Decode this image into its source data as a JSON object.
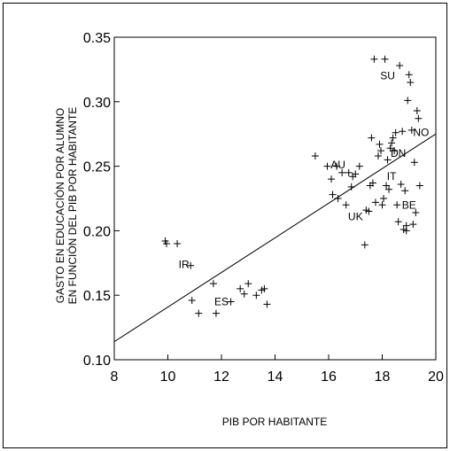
{
  "chart_data": {
    "type": "scatter",
    "title": "",
    "xlabel": "PIB POR HABITANTE",
    "ylabel": [
      "GASTO EN EDUCACIÓN POR ALUMNO",
      "EN FUNCIÓN DEL PIB POR HABITANTE"
    ],
    "xlim": [
      8,
      20
    ],
    "ylim": [
      0.1,
      0.35
    ],
    "xticks": [
      "8",
      "10",
      "12",
      "14",
      "16",
      "18",
      "20"
    ],
    "yticks": [
      "0.10",
      "0.15",
      "0.20",
      "0.25",
      "0.30",
      "0.35"
    ],
    "grid": false,
    "legend": "none",
    "marker": "+",
    "points": [
      {
        "x": 9.9,
        "y": 0.192
      },
      {
        "x": 9.95,
        "y": 0.19
      },
      {
        "x": 10.35,
        "y": 0.19
      },
      {
        "x": 10.85,
        "y": 0.173
      },
      {
        "x": 10.9,
        "y": 0.146
      },
      {
        "x": 11.15,
        "y": 0.136
      },
      {
        "x": 11.7,
        "y": 0.159
      },
      {
        "x": 11.8,
        "y": 0.136
      },
      {
        "x": 12.35,
        "y": 0.145
      },
      {
        "x": 12.7,
        "y": 0.155
      },
      {
        "x": 12.85,
        "y": 0.151
      },
      {
        "x": 13.0,
        "y": 0.159
      },
      {
        "x": 13.3,
        "y": 0.15
      },
      {
        "x": 13.5,
        "y": 0.154
      },
      {
        "x": 13.6,
        "y": 0.155
      },
      {
        "x": 13.7,
        "y": 0.143
      },
      {
        "x": 15.5,
        "y": 0.258
      },
      {
        "x": 15.95,
        "y": 0.25
      },
      {
        "x": 16.1,
        "y": 0.24
      },
      {
        "x": 16.15,
        "y": 0.228
      },
      {
        "x": 16.3,
        "y": 0.25
      },
      {
        "x": 16.35,
        "y": 0.225
      },
      {
        "x": 16.5,
        "y": 0.245
      },
      {
        "x": 16.65,
        "y": 0.22
      },
      {
        "x": 16.75,
        "y": 0.245
      },
      {
        "x": 16.85,
        "y": 0.234
      },
      {
        "x": 16.9,
        "y": 0.242
      },
      {
        "x": 17.0,
        "y": 0.244
      },
      {
        "x": 17.15,
        "y": 0.25
      },
      {
        "x": 17.35,
        "y": 0.189
      },
      {
        "x": 17.4,
        "y": 0.216
      },
      {
        "x": 17.5,
        "y": 0.215
      },
      {
        "x": 17.55,
        "y": 0.235
      },
      {
        "x": 17.6,
        "y": 0.272
      },
      {
        "x": 17.65,
        "y": 0.237
      },
      {
        "x": 17.7,
        "y": 0.333
      },
      {
        "x": 17.75,
        "y": 0.222
      },
      {
        "x": 17.85,
        "y": 0.258
      },
      {
        "x": 17.9,
        "y": 0.267
      },
      {
        "x": 17.95,
        "y": 0.262
      },
      {
        "x": 18.0,
        "y": 0.22
      },
      {
        "x": 18.05,
        "y": 0.225
      },
      {
        "x": 18.1,
        "y": 0.333
      },
      {
        "x": 18.15,
        "y": 0.235
      },
      {
        "x": 18.2,
        "y": 0.255
      },
      {
        "x": 18.25,
        "y": 0.232
      },
      {
        "x": 18.3,
        "y": 0.264
      },
      {
        "x": 18.4,
        "y": 0.272
      },
      {
        "x": 18.5,
        "y": 0.276
      },
      {
        "x": 18.55,
        "y": 0.22
      },
      {
        "x": 18.6,
        "y": 0.207
      },
      {
        "x": 18.65,
        "y": 0.328
      },
      {
        "x": 18.7,
        "y": 0.236
      },
      {
        "x": 18.75,
        "y": 0.277
      },
      {
        "x": 18.8,
        "y": 0.201
      },
      {
        "x": 18.85,
        "y": 0.231
      },
      {
        "x": 18.9,
        "y": 0.204
      },
      {
        "x": 18.95,
        "y": 0.301
      },
      {
        "x": 19.0,
        "y": 0.321
      },
      {
        "x": 19.05,
        "y": 0.315
      },
      {
        "x": 19.1,
        "y": 0.278
      },
      {
        "x": 19.15,
        "y": 0.205
      },
      {
        "x": 19.2,
        "y": 0.253
      },
      {
        "x": 19.25,
        "y": 0.214
      },
      {
        "x": 19.3,
        "y": 0.293
      },
      {
        "x": 19.35,
        "y": 0.287
      },
      {
        "x": 19.4,
        "y": 0.235
      },
      {
        "x": 18.35,
        "y": 0.268
      },
      {
        "x": 18.45,
        "y": 0.262
      },
      {
        "x": 18.9,
        "y": 0.2
      }
    ],
    "annotations": [
      {
        "text": "SU",
        "x": 18.2,
        "y": 0.32
      },
      {
        "text": "NO",
        "x": 19.45,
        "y": 0.276
      },
      {
        "text": "DN",
        "x": 18.6,
        "y": 0.26
      },
      {
        "text": "AU",
        "x": 16.35,
        "y": 0.251
      },
      {
        "text": "IT",
        "x": 18.35,
        "y": 0.242
      },
      {
        "text": "BE",
        "x": 19.0,
        "y": 0.22
      },
      {
        "text": "UK",
        "x": 17.0,
        "y": 0.211
      },
      {
        "text": "IR",
        "x": 10.6,
        "y": 0.174
      },
      {
        "text": "ES",
        "x": 12.0,
        "y": 0.145
      }
    ],
    "regression_line": {
      "x": [
        8,
        20
      ],
      "y": [
        0.114,
        0.275
      ]
    }
  }
}
